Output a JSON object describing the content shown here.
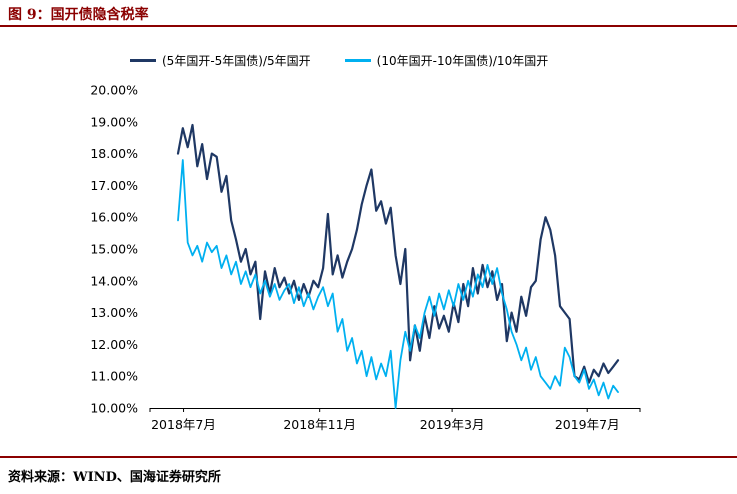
{
  "page": {
    "title": "图 9：国开债隐含税率",
    "source": "资料来源：WIND、国海证券研究所"
  },
  "colors": {
    "accent_red": "#8B0000",
    "navy": "#1F3864",
    "cyan": "#00B0F0"
  },
  "chart_data": {
    "type": "line",
    "title": "国开债隐含税率",
    "xlabel": "",
    "ylabel": "",
    "ylim": [
      10,
      20
    ],
    "grid": false,
    "legend_position": "top",
    "y_ticks": [
      "20.00%",
      "19.00%",
      "18.00%",
      "17.00%",
      "16.00%",
      "15.00%",
      "14.00%",
      "13.00%",
      "12.00%",
      "11.00%",
      "10.00%"
    ],
    "x_ticks": [
      {
        "label": "2018年7月",
        "t": 0.0126
      },
      {
        "label": "2018年11月",
        "t": 0.322
      },
      {
        "label": "2019年3月",
        "t": 0.623
      },
      {
        "label": "2019年7月",
        "t": 0.93
      }
    ],
    "x_range_note": "daily series, late June 2018 to late July 2019, sampled every ~4 days",
    "series": [
      {
        "name": "(5年国开-5年国债)/5年国开",
        "color": "#1F3864",
        "values": [
          18.0,
          18.8,
          18.2,
          18.9,
          17.6,
          18.3,
          17.2,
          18.0,
          17.9,
          16.8,
          17.3,
          15.9,
          15.3,
          14.6,
          15.0,
          14.2,
          14.6,
          12.8,
          14.3,
          13.6,
          14.4,
          13.8,
          14.1,
          13.6,
          14.0,
          13.4,
          13.9,
          13.5,
          14.0,
          13.8,
          14.4,
          16.1,
          14.2,
          14.8,
          14.1,
          14.6,
          15.0,
          15.6,
          16.4,
          17.0,
          17.5,
          16.2,
          16.5,
          15.8,
          16.3,
          14.8,
          13.9,
          15.0,
          11.5,
          12.6,
          11.8,
          12.9,
          12.2,
          13.2,
          12.5,
          12.9,
          12.4,
          13.3,
          12.7,
          13.9,
          13.2,
          14.4,
          13.6,
          14.5,
          13.8,
          14.3,
          13.4,
          13.9,
          12.1,
          13.0,
          12.4,
          13.5,
          12.9,
          13.8,
          14.0,
          15.3,
          16.0,
          15.6,
          14.8,
          13.2,
          13.0,
          12.8,
          11.0,
          10.9,
          11.3,
          10.8,
          11.2,
          11.0,
          11.4,
          11.1,
          11.3,
          11.5
        ]
      },
      {
        "name": "(10年国开-10年国债)/10年国开",
        "color": "#00B0F0",
        "values": [
          15.9,
          17.8,
          15.2,
          14.8,
          15.1,
          14.6,
          15.2,
          14.9,
          15.1,
          14.4,
          14.8,
          14.2,
          14.6,
          13.9,
          14.3,
          13.8,
          14.2,
          13.6,
          14.0,
          13.5,
          13.9,
          13.4,
          13.7,
          13.9,
          13.3,
          13.8,
          13.2,
          13.6,
          13.1,
          13.5,
          13.8,
          13.2,
          13.6,
          12.4,
          12.8,
          11.8,
          12.2,
          11.4,
          11.8,
          11.0,
          11.6,
          10.9,
          11.4,
          11.0,
          11.8,
          10.0,
          11.5,
          12.4,
          11.8,
          12.6,
          12.2,
          13.0,
          13.5,
          12.9,
          13.6,
          13.1,
          13.7,
          13.2,
          13.9,
          13.4,
          14.0,
          13.5,
          14.2,
          13.8,
          14.5,
          13.9,
          14.4,
          13.6,
          13.1,
          12.4,
          12.0,
          11.5,
          11.9,
          11.2,
          11.6,
          11.0,
          10.8,
          10.6,
          11.0,
          10.7,
          11.9,
          11.6,
          11.0,
          10.8,
          11.2,
          10.6,
          10.9,
          10.4,
          10.8,
          10.3,
          10.7,
          10.5
        ]
      }
    ]
  }
}
